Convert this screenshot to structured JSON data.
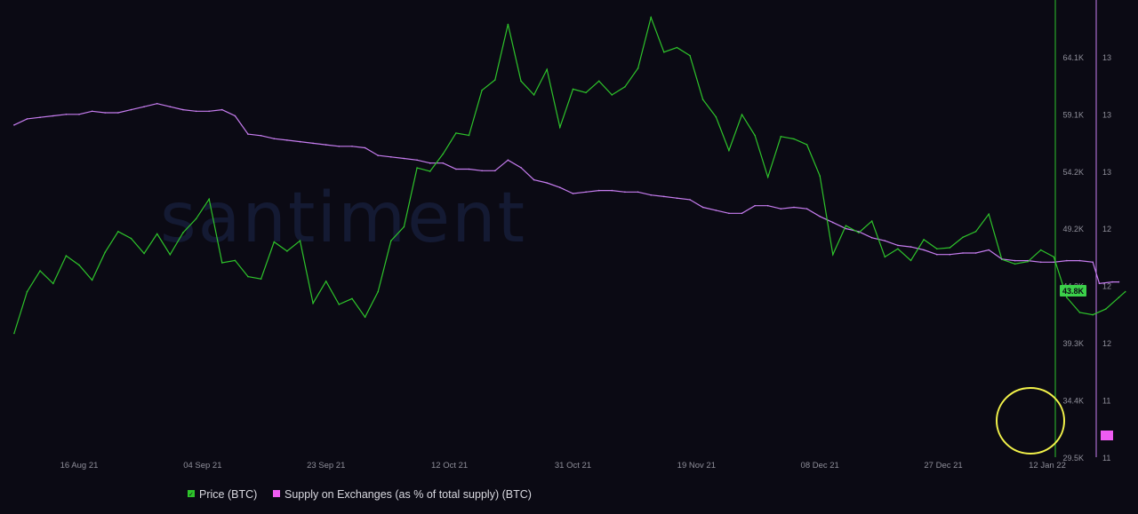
{
  "watermark": "santiment",
  "colors": {
    "background": "#0b0a14",
    "price": "#2ec42b",
    "supply": "#c77df0",
    "highlight_circle": "#f2f24a",
    "price_badge": "#3bd04a",
    "supply_badge": "#ef5cf2",
    "axis_text": "#8f8f9a"
  },
  "legend": [
    {
      "label": "Price (BTC)",
      "color": "#2ec42b"
    },
    {
      "label": "Supply on Exchanges (as % of total supply) (BTC)",
      "color": "#ef5cf2"
    }
  ],
  "chart_data": {
    "type": "line",
    "x_labels": [
      "16 Aug 21",
      "04 Sep 21",
      "23 Sep 21",
      "12 Oct 21",
      "31 Oct 21",
      "19 Nov 21",
      "08 Dec 21",
      "27 Dec 21",
      "12 Jan 22"
    ],
    "price_axis": {
      "ticks": [
        "64.1K",
        "59.1K",
        "54.2K",
        "49.2K",
        "44.3K",
        "39.3K",
        "34.4K",
        "29.5K"
      ],
      "range": [
        29500,
        69000
      ],
      "current_value_label": "43.8K"
    },
    "supply_axis": {
      "ticks": [
        "13",
        "13",
        "13",
        "12",
        "12",
        "12",
        "11",
        "11"
      ],
      "range": [
        11,
        14
      ]
    },
    "series": [
      {
        "name": "Price (BTC)",
        "axis": "price",
        "points": [
          [
            "06 Aug 21",
            40200
          ],
          [
            "08 Aug 21",
            43800
          ],
          [
            "10 Aug 21",
            45600
          ],
          [
            "12 Aug 21",
            44500
          ],
          [
            "14 Aug 21",
            46900
          ],
          [
            "16 Aug 21",
            46100
          ],
          [
            "18 Aug 21",
            44800
          ],
          [
            "20 Aug 21",
            47200
          ],
          [
            "22 Aug 21",
            49000
          ],
          [
            "24 Aug 21",
            48400
          ],
          [
            "26 Aug 21",
            47100
          ],
          [
            "28 Aug 21",
            48800
          ],
          [
            "30 Aug 21",
            47000
          ],
          [
            "01 Sep 21",
            48900
          ],
          [
            "03 Sep 21",
            50100
          ],
          [
            "05 Sep 21",
            51800
          ],
          [
            "07 Sep 21",
            46300
          ],
          [
            "09 Sep 21",
            46500
          ],
          [
            "11 Sep 21",
            45100
          ],
          [
            "13 Sep 21",
            44900
          ],
          [
            "15 Sep 21",
            48100
          ],
          [
            "17 Sep 21",
            47300
          ],
          [
            "19 Sep 21",
            48200
          ],
          [
            "21 Sep 21",
            42800
          ],
          [
            "23 Sep 21",
            44700
          ],
          [
            "25 Sep 21",
            42700
          ],
          [
            "27 Sep 21",
            43200
          ],
          [
            "29 Sep 21",
            41600
          ],
          [
            "01 Oct 21",
            43800
          ],
          [
            "03 Oct 21",
            48200
          ],
          [
            "05 Oct 21",
            49400
          ],
          [
            "07 Oct 21",
            54500
          ],
          [
            "09 Oct 21",
            54200
          ],
          [
            "11 Oct 21",
            55700
          ],
          [
            "13 Oct 21",
            57500
          ],
          [
            "15 Oct 21",
            57300
          ],
          [
            "17 Oct 21",
            61200
          ],
          [
            "19 Oct 21",
            62100
          ],
          [
            "21 Oct 21",
            66900
          ],
          [
            "23 Oct 21",
            62000
          ],
          [
            "25 Oct 21",
            60800
          ],
          [
            "27 Oct 21",
            63000
          ],
          [
            "29 Oct 21",
            58000
          ],
          [
            "31 Oct 21",
            61300
          ],
          [
            "02 Nov 21",
            61000
          ],
          [
            "04 Nov 21",
            62000
          ],
          [
            "06 Nov 21",
            60800
          ],
          [
            "08 Nov 21",
            61500
          ],
          [
            "10 Nov 21",
            63100
          ],
          [
            "12 Nov 21",
            67500
          ],
          [
            "14 Nov 21",
            64500
          ],
          [
            "16 Nov 21",
            64900
          ],
          [
            "18 Nov 21",
            64200
          ],
          [
            "20 Nov 21",
            60400
          ],
          [
            "22 Nov 21",
            58900
          ],
          [
            "24 Nov 21",
            56000
          ],
          [
            "26 Nov 21",
            59100
          ],
          [
            "28 Nov 21",
            57300
          ],
          [
            "30 Nov 21",
            53700
          ],
          [
            "02 Dec 21",
            57200
          ],
          [
            "04 Dec 21",
            57000
          ],
          [
            "06 Dec 21",
            56500
          ],
          [
            "08 Dec 21",
            53800
          ],
          [
            "10 Dec 21",
            47000
          ],
          [
            "12 Dec 21",
            49500
          ],
          [
            "14 Dec 21",
            48900
          ],
          [
            "16 Dec 21",
            49900
          ],
          [
            "18 Dec 21",
            46800
          ],
          [
            "20 Dec 21",
            47500
          ],
          [
            "22 Dec 21",
            46500
          ],
          [
            "24 Dec 21",
            48300
          ],
          [
            "26 Dec 21",
            47500
          ],
          [
            "28 Dec 21",
            47600
          ],
          [
            "30 Dec 21",
            48500
          ],
          [
            "01 Jan 22",
            49000
          ],
          [
            "03 Jan 22",
            50500
          ],
          [
            "05 Jan 22",
            46600
          ],
          [
            "07 Jan 22",
            46200
          ],
          [
            "09 Jan 22",
            46400
          ],
          [
            "11 Jan 22",
            47400
          ],
          [
            "13 Jan 22",
            46800
          ],
          [
            "15 Jan 22",
            43300
          ],
          [
            "17 Jan 22",
            42000
          ],
          [
            "19 Jan 22",
            41800
          ],
          [
            "21 Jan 22",
            42300
          ],
          [
            "23 Jan 22",
            43300
          ],
          [
            "24 Jan 22",
            43800
          ]
        ]
      },
      {
        "name": "Supply on Exchanges (as % of total supply) (BTC)",
        "axis": "supply",
        "points": [
          [
            "06 Aug 21",
            13.18
          ],
          [
            "08 Aug 21",
            13.22
          ],
          [
            "10 Aug 21",
            13.23
          ],
          [
            "12 Aug 21",
            13.24
          ],
          [
            "14 Aug 21",
            13.25
          ],
          [
            "16 Aug 21",
            13.25
          ],
          [
            "18 Aug 21",
            13.27
          ],
          [
            "20 Aug 21",
            13.26
          ],
          [
            "22 Aug 21",
            13.26
          ],
          [
            "24 Aug 21",
            13.28
          ],
          [
            "26 Aug 21",
            13.3
          ],
          [
            "28 Aug 21",
            13.32
          ],
          [
            "30 Aug 21",
            13.3
          ],
          [
            "01 Sep 21",
            13.28
          ],
          [
            "03 Sep 21",
            13.27
          ],
          [
            "05 Sep 21",
            13.27
          ],
          [
            "07 Sep 21",
            13.28
          ],
          [
            "09 Sep 21",
            13.24
          ],
          [
            "11 Sep 21",
            13.12
          ],
          [
            "13 Sep 21",
            13.11
          ],
          [
            "15 Sep 21",
            13.09
          ],
          [
            "17 Sep 21",
            13.08
          ],
          [
            "19 Sep 21",
            13.07
          ],
          [
            "21 Sep 21",
            13.06
          ],
          [
            "23 Sep 21",
            13.05
          ],
          [
            "25 Sep 21",
            13.04
          ],
          [
            "27 Sep 21",
            13.04
          ],
          [
            "29 Sep 21",
            13.03
          ],
          [
            "01 Oct 21",
            12.98
          ],
          [
            "03 Oct 21",
            12.97
          ],
          [
            "05 Oct 21",
            12.96
          ],
          [
            "07 Oct 21",
            12.95
          ],
          [
            "09 Oct 21",
            12.93
          ],
          [
            "11 Oct 21",
            12.93
          ],
          [
            "13 Oct 21",
            12.89
          ],
          [
            "15 Oct 21",
            12.89
          ],
          [
            "17 Oct 21",
            12.88
          ],
          [
            "19 Oct 21",
            12.88
          ],
          [
            "21 Oct 21",
            12.95
          ],
          [
            "23 Oct 21",
            12.9
          ],
          [
            "25 Oct 21",
            12.82
          ],
          [
            "27 Oct 21",
            12.8
          ],
          [
            "29 Oct 21",
            12.77
          ],
          [
            "31 Oct 21",
            12.73
          ],
          [
            "02 Nov 21",
            12.74
          ],
          [
            "04 Nov 21",
            12.75
          ],
          [
            "06 Nov 21",
            12.75
          ],
          [
            "08 Nov 21",
            12.74
          ],
          [
            "10 Nov 21",
            12.74
          ],
          [
            "12 Nov 21",
            12.72
          ],
          [
            "14 Nov 21",
            12.71
          ],
          [
            "16 Nov 21",
            12.7
          ],
          [
            "18 Nov 21",
            12.69
          ],
          [
            "20 Nov 21",
            12.64
          ],
          [
            "22 Nov 21",
            12.62
          ],
          [
            "24 Nov 21",
            12.6
          ],
          [
            "26 Nov 21",
            12.6
          ],
          [
            "28 Nov 21",
            12.65
          ],
          [
            "30 Nov 21",
            12.65
          ],
          [
            "02 Dec 21",
            12.63
          ],
          [
            "04 Dec 21",
            12.64
          ],
          [
            "06 Dec 21",
            12.63
          ],
          [
            "08 Dec 21",
            12.58
          ],
          [
            "10 Dec 21",
            12.54
          ],
          [
            "12 Dec 21",
            12.5
          ],
          [
            "14 Dec 21",
            12.48
          ],
          [
            "16 Dec 21",
            12.44
          ],
          [
            "18 Dec 21",
            12.42
          ],
          [
            "20 Dec 21",
            12.39
          ],
          [
            "22 Dec 21",
            12.38
          ],
          [
            "24 Dec 21",
            12.36
          ],
          [
            "26 Dec 21",
            12.33
          ],
          [
            "28 Dec 21",
            12.33
          ],
          [
            "30 Dec 21",
            12.34
          ],
          [
            "01 Jan 22",
            12.34
          ],
          [
            "03 Jan 22",
            12.36
          ],
          [
            "05 Jan 22",
            12.3
          ],
          [
            "07 Jan 22",
            12.29
          ],
          [
            "09 Jan 22",
            12.29
          ],
          [
            "11 Jan 22",
            12.28
          ],
          [
            "13 Jan 22",
            12.28
          ],
          [
            "15 Jan 22",
            12.29
          ],
          [
            "17 Jan 22",
            12.29
          ],
          [
            "19 Jan 22",
            12.28
          ],
          [
            "20 Jan 22",
            12.14
          ],
          [
            "22 Jan 22",
            12.15
          ],
          [
            "23 Jan 22",
            12.15
          ]
        ]
      }
    ],
    "annotations": [
      {
        "type": "circle",
        "around": "Supply on Exchanges (as % of total supply) (BTC)",
        "from": "16 Jan 22",
        "to": "24 Jan 22"
      }
    ],
    "grid": false,
    "legend_position": "bottom-left"
  }
}
